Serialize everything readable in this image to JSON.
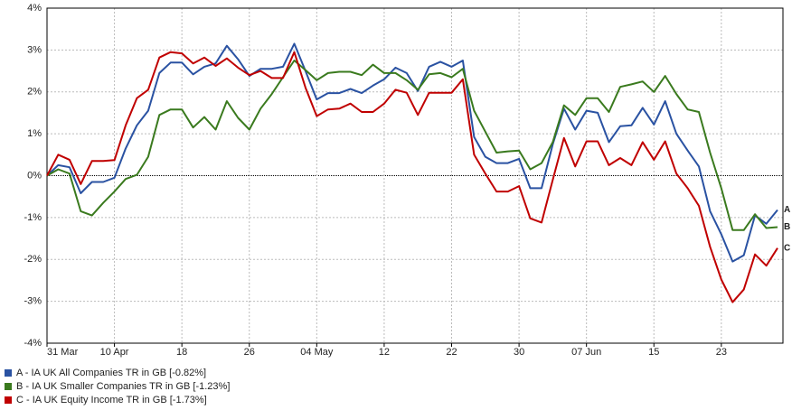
{
  "chart_data": {
    "type": "line",
    "categories": [
      "31 Mar",
      null,
      null,
      null,
      null,
      null,
      "10 Apr",
      null,
      null,
      null,
      null,
      null,
      "18",
      null,
      null,
      null,
      null,
      null,
      "26",
      null,
      null,
      null,
      null,
      null,
      "04 May",
      null,
      null,
      null,
      null,
      null,
      "12",
      null,
      null,
      null,
      null,
      null,
      "22",
      null,
      null,
      null,
      null,
      null,
      "30",
      null,
      null,
      null,
      null,
      null,
      "07 Jun",
      null,
      null,
      null,
      null,
      null,
      "15",
      null,
      null,
      null,
      null,
      null,
      "23",
      null,
      null,
      null,
      null,
      null
    ],
    "ylim": [
      -4,
      4
    ],
    "yticks": [
      {
        "value": 4,
        "label": "4%"
      },
      {
        "value": 3,
        "label": "3%"
      },
      {
        "value": 2,
        "label": "2%"
      },
      {
        "value": 1,
        "label": "1%"
      },
      {
        "value": 0,
        "label": "0%"
      },
      {
        "value": -1,
        "label": "-1%"
      },
      {
        "value": -2,
        "label": "-2%"
      },
      {
        "value": -3,
        "label": "-3%"
      },
      {
        "value": -4,
        "label": "-4%"
      }
    ],
    "grid": true,
    "legend": "bottom-left",
    "series": [
      {
        "name": "A - IA UK All Companies TR in GB [-0.82%]",
        "end_label": "A",
        "color": "#2a52a2",
        "values": [
          0,
          0.25,
          0.2,
          -0.42,
          -0.15,
          -0.15,
          -0.05,
          0.65,
          1.2,
          1.55,
          2.45,
          2.7,
          2.7,
          2.42,
          2.6,
          2.68,
          3.1,
          2.78,
          2.38,
          2.55,
          2.55,
          2.6,
          3.15,
          2.5,
          1.82,
          1.97,
          1.97,
          2.07,
          1.97,
          2.15,
          2.3,
          2.58,
          2.45,
          2.02,
          2.6,
          2.72,
          2.6,
          2.75,
          0.92,
          0.45,
          0.3,
          0.3,
          0.4,
          -0.3,
          -0.3,
          0.75,
          1.6,
          1.1,
          1.55,
          1.5,
          0.8,
          1.18,
          1.2,
          1.62,
          1.22,
          1.78,
          1.0,
          0.6,
          0.22,
          -0.85,
          -1.4,
          -2.05,
          -1.9,
          -0.95,
          -1.15,
          -0.82
        ]
      },
      {
        "name": "B - IA UK Smaller Companies TR in GB [-1.23%]",
        "end_label": "B",
        "color": "#3a7a1e",
        "values": [
          0,
          0.15,
          0.05,
          -0.85,
          -0.95,
          -0.65,
          -0.38,
          -0.08,
          0.02,
          0.45,
          1.45,
          1.58,
          1.58,
          1.15,
          1.4,
          1.1,
          1.78,
          1.38,
          1.1,
          1.6,
          1.95,
          2.35,
          2.75,
          2.52,
          2.28,
          2.45,
          2.48,
          2.48,
          2.4,
          2.65,
          2.45,
          2.45,
          2.28,
          2.05,
          2.42,
          2.45,
          2.35,
          2.55,
          1.55,
          1.05,
          0.55,
          0.58,
          0.6,
          0.15,
          0.3,
          0.8,
          1.68,
          1.45,
          1.85,
          1.85,
          1.52,
          2.12,
          2.18,
          2.25,
          2.0,
          2.38,
          1.95,
          1.58,
          1.52,
          0.55,
          -0.3,
          -1.3,
          -1.3,
          -0.92,
          -1.25,
          -1.23
        ]
      },
      {
        "name": "C - IA UK Equity Income TR in GB [-1.73%]",
        "end_label": "C",
        "color": "#c00000",
        "values": [
          0,
          0.5,
          0.38,
          -0.2,
          0.35,
          0.35,
          0.37,
          1.2,
          1.85,
          2.05,
          2.82,
          2.95,
          2.92,
          2.68,
          2.82,
          2.62,
          2.8,
          2.58,
          2.4,
          2.5,
          2.33,
          2.33,
          2.95,
          2.1,
          1.42,
          1.58,
          1.6,
          1.72,
          1.52,
          1.52,
          1.72,
          2.05,
          1.98,
          1.45,
          1.98,
          1.98,
          1.98,
          2.3,
          0.5,
          0.05,
          -0.38,
          -0.38,
          -0.25,
          -1.02,
          -1.12,
          -0.1,
          0.9,
          0.22,
          0.82,
          0.82,
          0.25,
          0.42,
          0.25,
          0.8,
          0.38,
          0.82,
          0.05,
          -0.3,
          -0.72,
          -1.7,
          -2.48,
          -3.02,
          -2.72,
          -1.88,
          -2.15,
          -1.73
        ]
      }
    ]
  }
}
